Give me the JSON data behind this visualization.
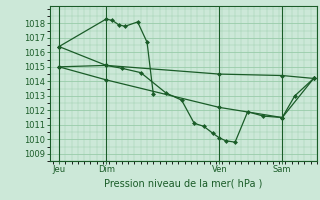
{
  "background_color": "#cce8d8",
  "grid_color": "#99ccaa",
  "line_color": "#1a5c28",
  "title": "Pression niveau de la mer( hPa )",
  "ylim": [
    1008.5,
    1019.2
  ],
  "yticks": [
    1009,
    1010,
    1011,
    1012,
    1013,
    1014,
    1015,
    1016,
    1017,
    1018
  ],
  "xlim": [
    -0.5,
    42
  ],
  "day_positions": [
    1.0,
    8.5,
    26.5,
    36.5
  ],
  "day_labels": [
    "Jeu",
    "Dim",
    "Ven",
    "Sam"
  ],
  "vline_positions": [
    1.0,
    8.5,
    26.5,
    36.5
  ],
  "series1": {
    "x": [
      1.0,
      8.5,
      9.5,
      10.5,
      11.5,
      13.5,
      15.0,
      16.0
    ],
    "y": [
      1016.4,
      1018.3,
      1018.2,
      1017.9,
      1017.8,
      1018.1,
      1016.7,
      1013.1
    ]
  },
  "series2": {
    "x": [
      1.0,
      8.5,
      11.0,
      14.0,
      18.0,
      20.5,
      22.5,
      24.0,
      25.5,
      26.5,
      27.5,
      29.0,
      31.0,
      33.5,
      36.5,
      38.5,
      41.5
    ],
    "y": [
      1015.0,
      1015.1,
      1014.9,
      1014.6,
      1013.2,
      1012.7,
      1011.1,
      1010.9,
      1010.4,
      1010.1,
      1009.9,
      1009.8,
      1011.9,
      1011.6,
      1011.5,
      1013.0,
      1014.2
    ]
  },
  "series3": {
    "x": [
      1.0,
      8.5,
      26.5,
      36.5,
      41.5
    ],
    "y": [
      1016.4,
      1015.1,
      1014.5,
      1014.4,
      1014.2
    ]
  },
  "series4": {
    "x": [
      1.0,
      8.5,
      26.5,
      36.5,
      41.5
    ],
    "y": [
      1015.0,
      1014.1,
      1012.2,
      1011.5,
      1014.2
    ]
  },
  "ylabel_fontsize": 6,
  "xlabel_fontsize": 7,
  "tick_labelsize": 6
}
